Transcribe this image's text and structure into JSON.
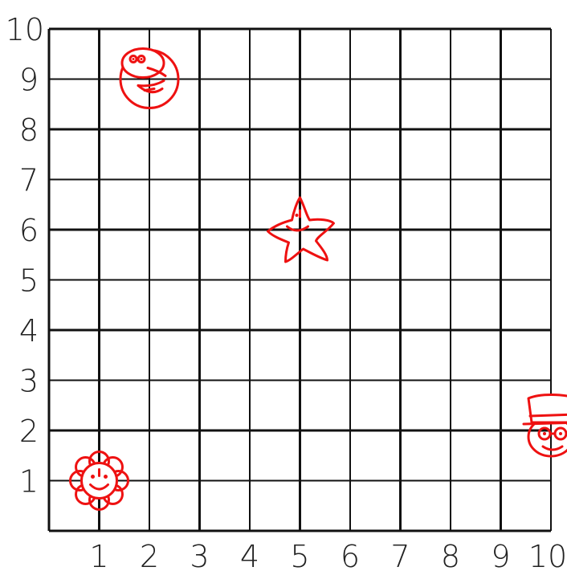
{
  "chart_data": {
    "type": "scatter",
    "xlim": [
      0,
      10
    ],
    "ylim": [
      0,
      10
    ],
    "grid": true,
    "x_ticks": [
      "1",
      "2",
      "3",
      "4",
      "5",
      "6",
      "7",
      "8",
      "9",
      "10"
    ],
    "y_ticks": [
      "1",
      "2",
      "3",
      "4",
      "5",
      "6",
      "7",
      "8",
      "9",
      "10"
    ],
    "points": [
      {
        "x": 1,
        "y": 1,
        "icon": "flower-face-icon"
      },
      {
        "x": 2,
        "y": 9,
        "icon": "bird-face-icon"
      },
      {
        "x": 5,
        "y": 6,
        "icon": "starfish-icon"
      },
      {
        "x": 10,
        "y": 2,
        "icon": "top-hat-face-icon"
      }
    ]
  },
  "colors": {
    "grid": "#111111",
    "doodle": "#ee1111",
    "labels": "#222222"
  }
}
